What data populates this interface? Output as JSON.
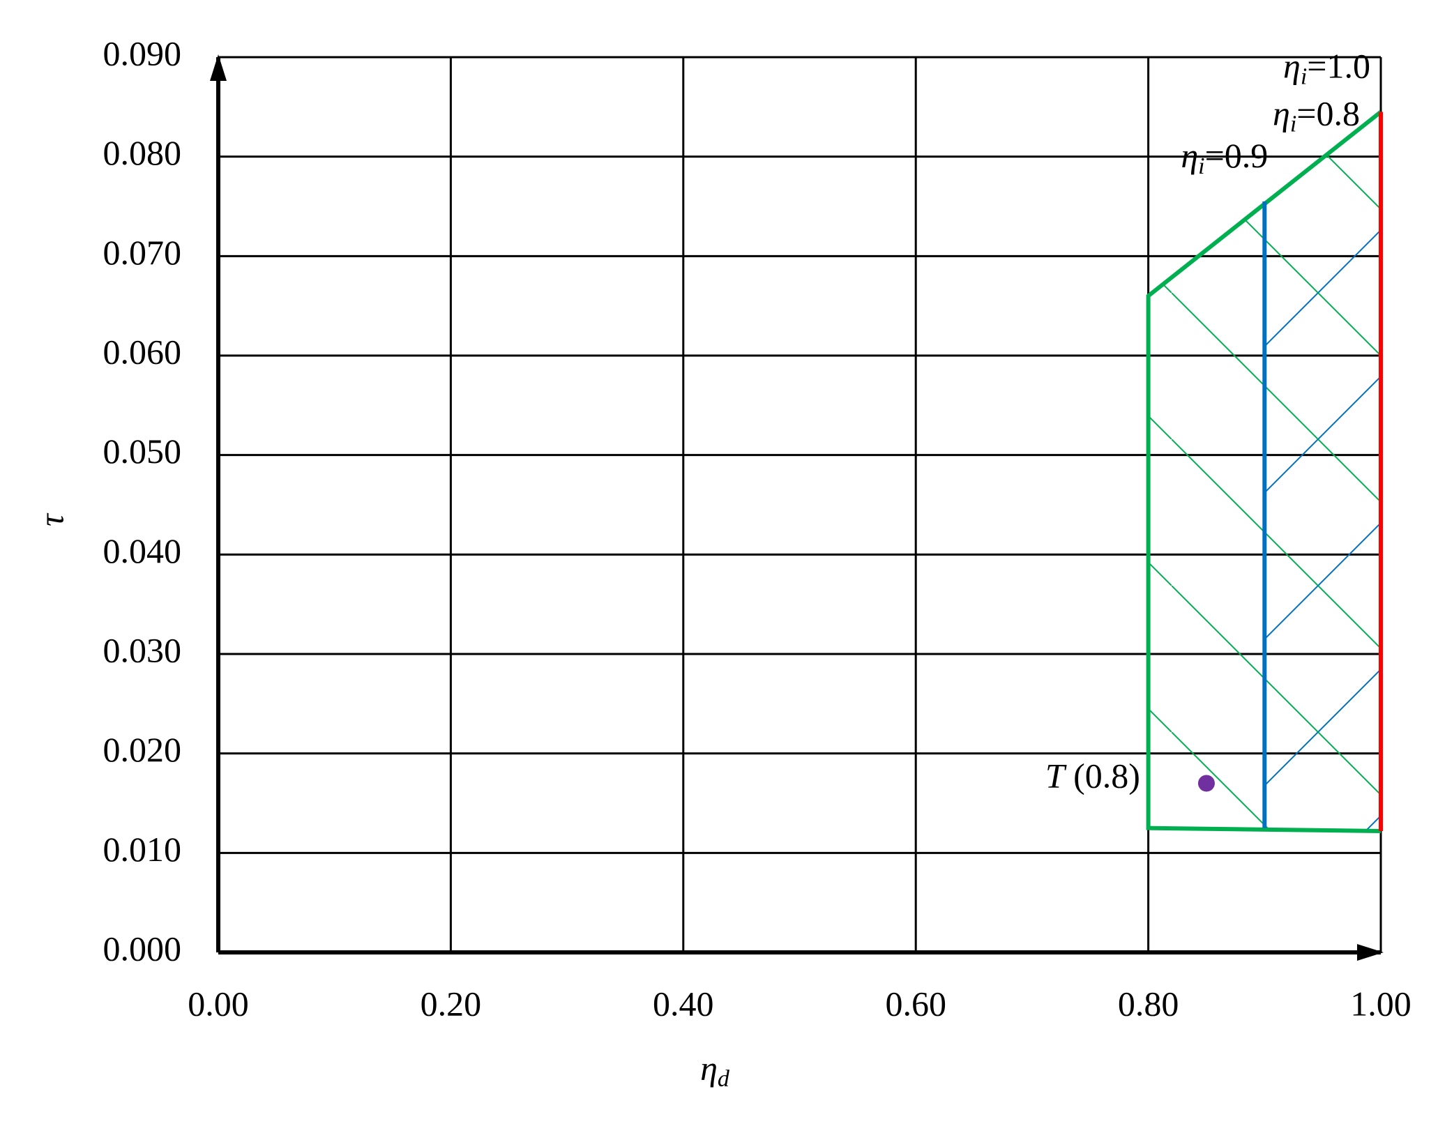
{
  "chart_data": {
    "type": "line",
    "xlabel": [
      "η",
      "d"
    ],
    "ylabel": "τ",
    "xlim": [
      0,
      1
    ],
    "xticks": [
      {
        "value": 0,
        "label": "0.00"
      },
      {
        "value": 0.2,
        "label": "0.20"
      },
      {
        "value": 0.4,
        "label": "0.40"
      },
      {
        "value": 0.6,
        "label": "0.60"
      },
      {
        "value": 0.8,
        "label": "0.80"
      },
      {
        "value": 1,
        "label": "1.00"
      }
    ],
    "ylim": [
      0,
      0.09
    ],
    "yticks": [
      {
        "value": 0,
        "label": "0.000"
      },
      {
        "value": 0.01,
        "label": "0.010"
      },
      {
        "value": 0.02,
        "label": "0.020"
      },
      {
        "value": 0.03,
        "label": "0.030"
      },
      {
        "value": 0.04,
        "label": "0.040"
      },
      {
        "value": 0.05,
        "label": "0.050"
      },
      {
        "value": 0.06,
        "label": "0.060"
      },
      {
        "value": 0.07,
        "label": "0.070"
      },
      {
        "value": 0.08,
        "label": "0.080"
      },
      {
        "value": 0.09,
        "label": "0.090"
      }
    ],
    "grid": true,
    "series": [
      {
        "name": [
          "η",
          "i",
          "=0.8"
        ],
        "color": "#00b050",
        "x": [
          1.0,
          0.8,
          0.8,
          1.0
        ],
        "values": [
          0.0122,
          0.0125,
          0.066,
          0.0845
        ]
      },
      {
        "name": [
          "η",
          "i",
          "=0.9"
        ],
        "color": "#0070c0",
        "x": [
          0.9,
          0.9
        ],
        "values": [
          0.0125,
          0.0755
        ]
      },
      {
        "name": [
          "η",
          "i",
          "=1.0"
        ],
        "color": "#ff0000",
        "x": [
          1.0,
          1.0
        ],
        "values": [
          0.0122,
          0.0845
        ]
      }
    ],
    "points": [
      {
        "name": [
          "T",
          " (0.8)"
        ],
        "color": "#7030a0",
        "x": 0.85,
        "value": 0.017
      }
    ]
  }
}
